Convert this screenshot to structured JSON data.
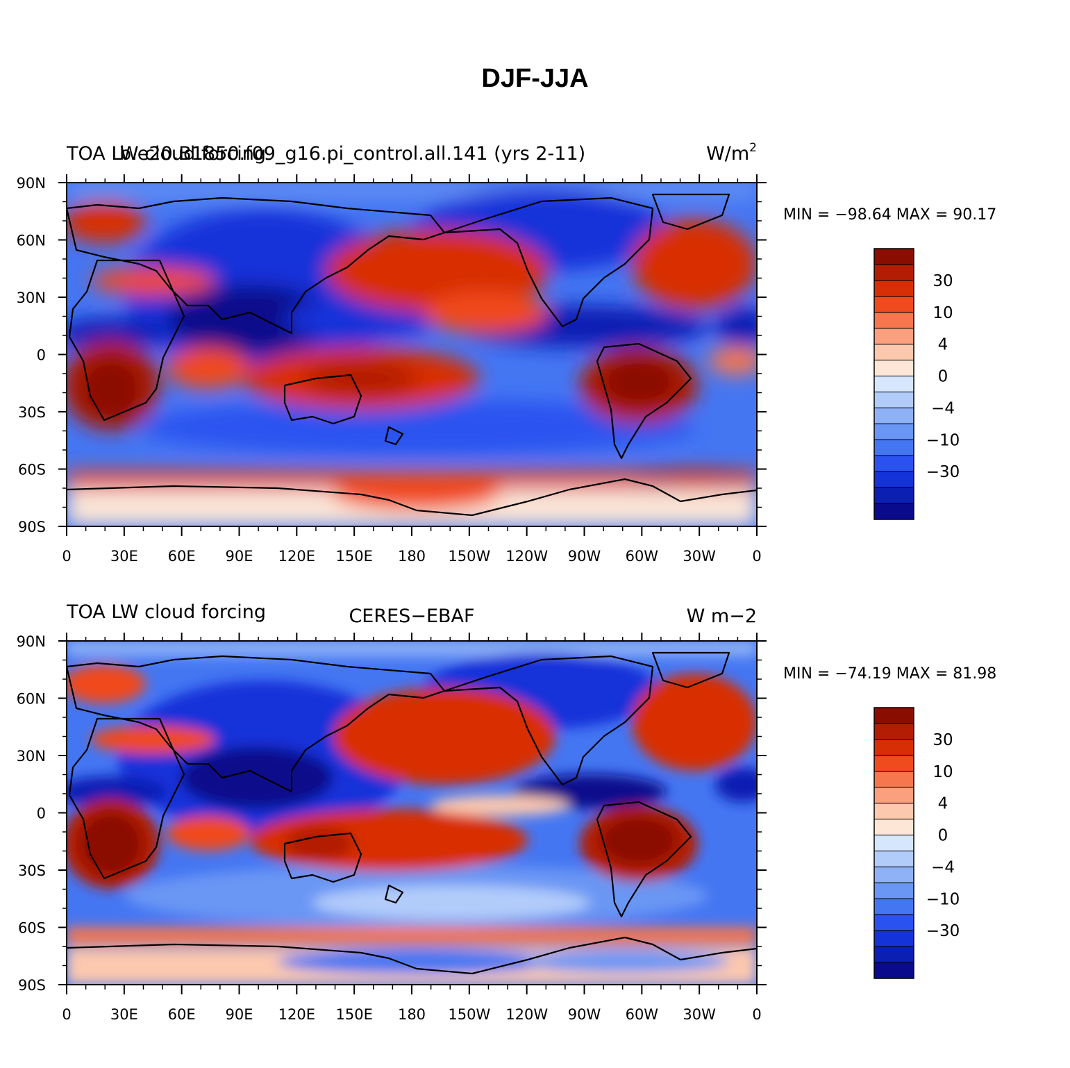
{
  "title": "DJF-JJA",
  "colors": {
    "levels": [
      "#0a0b8c",
      "#0c1fb3",
      "#1433d9",
      "#2a52f0",
      "#4476f2",
      "#6a96f4",
      "#8fb2f7",
      "#b2ccfa",
      "#d6e6fd",
      "#fde6d6",
      "#fcc8ae",
      "#fba07e",
      "#f6764d",
      "#f04a1f",
      "#d82e06",
      "#b31d04",
      "#8a0d02"
    ]
  },
  "panels": [
    {
      "left_title": "TOA LW cloud forcing",
      "center_title": "b.e20.B1850.f09_g16.pi_control.all.141 (yrs 2-11)",
      "right_title": "W/m",
      "right_title_sup": "2",
      "stats": "MIN = −98.64  MAX =   90.17"
    },
    {
      "left_title": "TOA LW cloud forcing",
      "center_title": "CERES−EBAF",
      "right_title": "W m−2",
      "right_title_sup": "",
      "stats": "MIN = −74.19  MAX =   81.98"
    }
  ],
  "lat_labels": [
    "90N",
    "60N",
    "30N",
    "0",
    "30S",
    "60S",
    "90S"
  ],
  "lon_labels": [
    "0",
    "30E",
    "60E",
    "90E",
    "120E",
    "150E",
    "180",
    "150W",
    "120W",
    "90W",
    "60W",
    "30W",
    "0"
  ],
  "colorbar_labels": [
    "30",
    "10",
    "4",
    "0",
    "−4",
    "−10",
    "−30"
  ]
}
